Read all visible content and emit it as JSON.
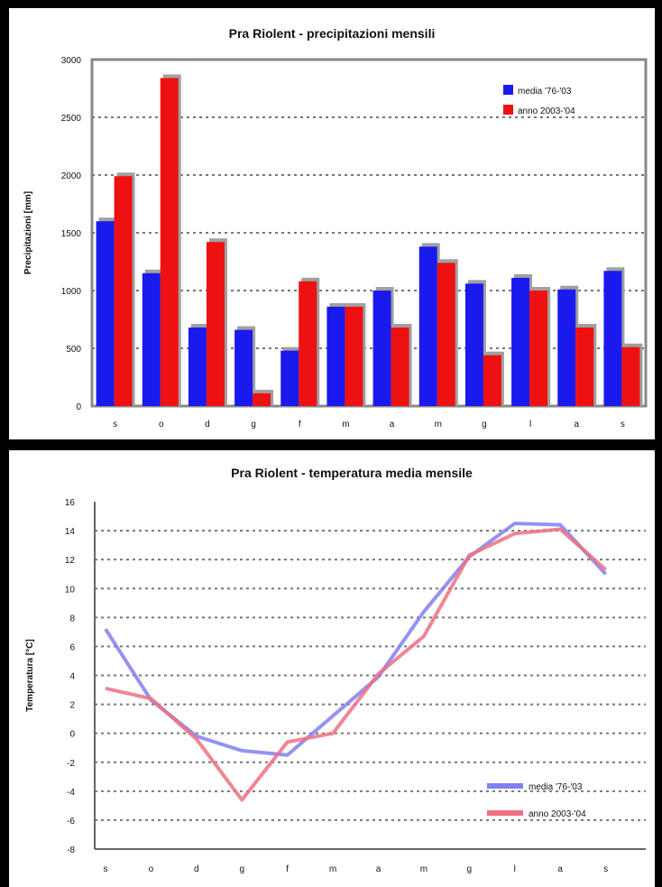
{
  "chart_data": [
    {
      "type": "bar",
      "title": "Pra Riolent - precipitazioni mensili",
      "xlabel": "",
      "ylabel": "Precipitazioni [mm]",
      "categories": [
        "s",
        "o",
        "d",
        "g",
        "f",
        "m",
        "a",
        "m",
        "g",
        "l",
        "a",
        "s"
      ],
      "ylim": [
        0,
        3000
      ],
      "yticks": [
        0,
        500,
        1000,
        1500,
        2000,
        2500,
        3000
      ],
      "series": [
        {
          "name": "media '76-'03",
          "color": "#1a1aee",
          "values": [
            1600,
            1150,
            680,
            660,
            480,
            860,
            1000,
            1380,
            1060,
            1110,
            1010,
            1170
          ]
        },
        {
          "name": "anno 2003-'04",
          "color": "#ee1111",
          "values": [
            1990,
            2840,
            1420,
            110,
            1080,
            860,
            680,
            1240,
            440,
            1000,
            680,
            510
          ]
        }
      ],
      "legend": "top-right",
      "grid": true
    },
    {
      "type": "line",
      "title": "Pra Riolent - temperatura media mensile",
      "xlabel": "",
      "ylabel": "Temperatura [°C]",
      "categories": [
        "s",
        "o",
        "d",
        "g",
        "f",
        "m",
        "a",
        "m",
        "g",
        "l",
        "a",
        "s"
      ],
      "ylim": [
        -8,
        16
      ],
      "yticks": [
        -8,
        -6,
        -4,
        -2,
        0,
        2,
        4,
        6,
        8,
        10,
        12,
        14,
        16
      ],
      "series": [
        {
          "name": "media '76-'03",
          "color": "#8080f0",
          "values": [
            7.2,
            2.3,
            -0.2,
            -1.2,
            -1.5,
            1.2,
            3.9,
            8.4,
            12.2,
            14.5,
            14.4,
            11.0
          ]
        },
        {
          "name": "anno 2003-'04",
          "color": "#f07080",
          "values": [
            3.1,
            2.4,
            -0.4,
            -4.6,
            -0.6,
            0.0,
            4.1,
            6.7,
            12.3,
            13.8,
            14.1,
            11.3
          ]
        }
      ],
      "legend": "bottom-right",
      "grid": true
    }
  ]
}
